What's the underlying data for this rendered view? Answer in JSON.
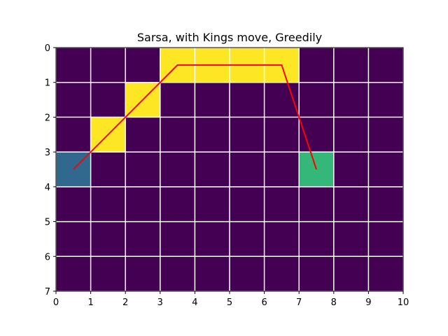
{
  "chart_data": {
    "type": "heatmap",
    "title": "Sarsa, with Kings move, Greedily",
    "xlabel": "",
    "ylabel": "",
    "n_cols": 10,
    "n_rows": 7,
    "xlim": [
      0,
      10
    ],
    "ylim": [
      7,
      0
    ],
    "x_ticks": [
      "0",
      "1",
      "2",
      "3",
      "4",
      "5",
      "6",
      "7",
      "8",
      "9",
      "10"
    ],
    "y_ticks": [
      "0",
      "1",
      "2",
      "3",
      "4",
      "5",
      "6",
      "7"
    ],
    "grid": true,
    "colormap": "viridis",
    "grid_values": [
      [
        0,
        0,
        0,
        3,
        3,
        3,
        3,
        0,
        0,
        0
      ],
      [
        0,
        0,
        3,
        0,
        0,
        0,
        0,
        0,
        0,
        0
      ],
      [
        0,
        3,
        0,
        0,
        0,
        0,
        0,
        0,
        0,
        0
      ],
      [
        1,
        0,
        0,
        0,
        0,
        0,
        0,
        2,
        0,
        0
      ],
      [
        0,
        0,
        0,
        0,
        0,
        0,
        0,
        0,
        0,
        0
      ],
      [
        0,
        0,
        0,
        0,
        0,
        0,
        0,
        0,
        0,
        0
      ],
      [
        0,
        0,
        0,
        0,
        0,
        0,
        0,
        0,
        0,
        0
      ]
    ],
    "value_colors": {
      "0": "#440154",
      "1": "#31688e",
      "2": "#35b779",
      "3": "#fde725"
    },
    "path": {
      "color": "#ff0000",
      "points": [
        [
          0.5,
          3.5
        ],
        [
          1.5,
          2.5
        ],
        [
          2.5,
          1.5
        ],
        [
          3.5,
          0.5
        ],
        [
          4.5,
          0.5
        ],
        [
          5.5,
          0.5
        ],
        [
          6.5,
          0.5
        ],
        [
          7.5,
          3.5
        ]
      ]
    },
    "grid_color": "#ffffff"
  }
}
